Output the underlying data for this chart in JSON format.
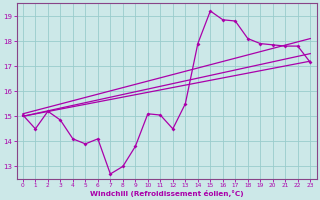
{
  "xlabel": "Windchill (Refroidissement éolien,°C)",
  "xlim": [
    -0.5,
    23.5
  ],
  "ylim": [
    12.5,
    19.5
  ],
  "xticks": [
    0,
    1,
    2,
    3,
    4,
    5,
    6,
    7,
    8,
    9,
    10,
    11,
    12,
    13,
    14,
    15,
    16,
    17,
    18,
    19,
    20,
    21,
    22,
    23
  ],
  "yticks": [
    13,
    14,
    15,
    16,
    17,
    18,
    19
  ],
  "bg_color": "#cce8e8",
  "grid_color": "#99cccc",
  "line_color": "#aa00aa",
  "spine_color": "#884488",
  "data_x": [
    0,
    1,
    2,
    3,
    4,
    5,
    6,
    7,
    8,
    9,
    10,
    11,
    12,
    13,
    14,
    15,
    16,
    17,
    18,
    19,
    20,
    21,
    22,
    23
  ],
  "data_y": [
    15.05,
    14.5,
    15.2,
    14.85,
    14.1,
    13.9,
    14.1,
    12.7,
    13.0,
    13.8,
    15.1,
    15.05,
    14.5,
    15.5,
    17.9,
    19.2,
    18.85,
    18.8,
    18.1,
    17.9,
    17.85,
    17.8,
    17.8,
    17.15
  ],
  "line1_x": [
    0,
    23
  ],
  "line1_y": [
    15.0,
    17.2
  ],
  "line2_x": [
    0,
    23
  ],
  "line2_y": [
    15.1,
    18.1
  ],
  "line3_x": [
    0,
    23
  ],
  "line3_y": [
    15.0,
    17.5
  ]
}
